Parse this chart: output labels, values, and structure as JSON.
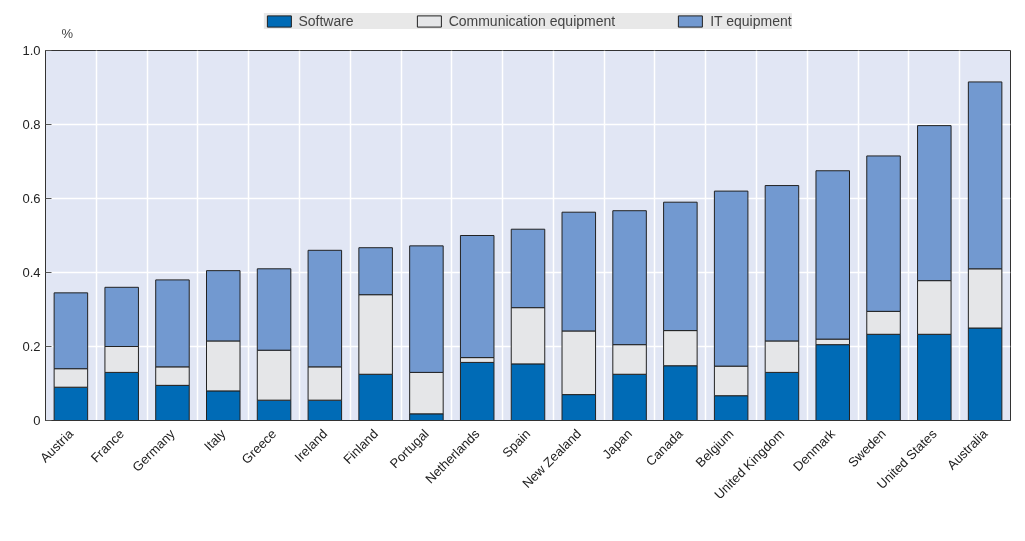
{
  "chart_data": {
    "type": "bar",
    "stacked": true,
    "ylabel": "%",
    "categories": [
      "Austria",
      "France",
      "Germany",
      "Italy",
      "Greece",
      "Ireland",
      "Finland",
      "Portugal",
      "Netherlands",
      "Spain",
      "New Zealand",
      "Japan",
      "Canada",
      "Belgium",
      "United Kingdom",
      "Denmark",
      "Sweden",
      "United States",
      "Australia"
    ],
    "series": [
      {
        "name": "Software",
        "color": "#006bb6",
        "values": [
          0.09,
          0.13,
          0.095,
          0.08,
          0.055,
          0.055,
          0.125,
          0.018,
          0.157,
          0.153,
          0.07,
          0.125,
          0.148,
          0.067,
          0.13,
          0.205,
          0.233,
          0.233,
          0.25
        ]
      },
      {
        "name": "Communication equipment",
        "color": "#e5e6e8",
        "values": [
          0.05,
          0.07,
          0.05,
          0.135,
          0.135,
          0.09,
          0.215,
          0.112,
          0.013,
          0.152,
          0.172,
          0.08,
          0.095,
          0.08,
          0.085,
          0.015,
          0.062,
          0.145,
          0.16
        ]
      },
      {
        "name": "IT equipment",
        "color": "#7299d0",
        "values": [
          0.205,
          0.16,
          0.235,
          0.19,
          0.22,
          0.315,
          0.127,
          0.342,
          0.33,
          0.212,
          0.321,
          0.362,
          0.347,
          0.473,
          0.42,
          0.455,
          0.42,
          0.419,
          0.505
        ]
      }
    ],
    "ylim": [
      0,
      1.0
    ],
    "yticks": [
      0,
      {
        "value": 0.2,
        "label": "0.2"
      },
      {
        "value": 0.4,
        "label": "0.4"
      },
      {
        "value": 0.6,
        "label": "0.6"
      },
      {
        "value": 0.8,
        "label": "0.8"
      },
      {
        "value": 1.0,
        "label": "1.0"
      }
    ],
    "grid": true,
    "legend": "top"
  }
}
